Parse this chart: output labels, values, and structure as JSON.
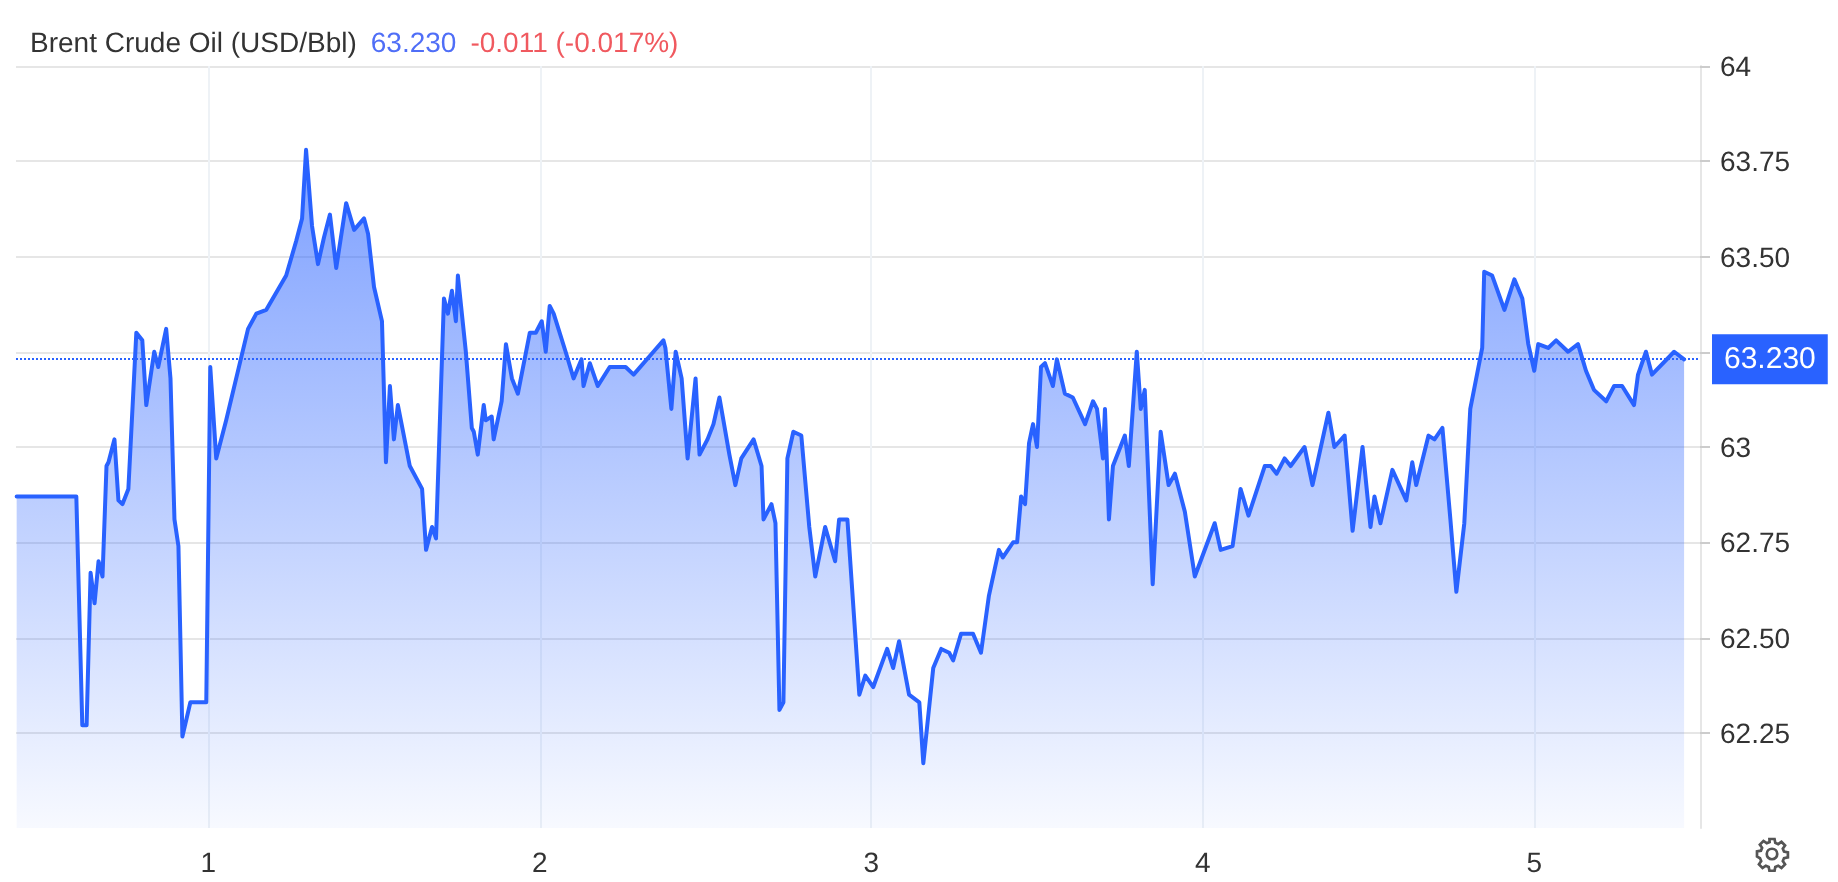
{
  "chart_data": {
    "type": "area",
    "title": "Brent Crude Oil (USD/Bbl)",
    "subtitle": "63.230",
    "annotations": [
      "-0.011 (-0.017%)"
    ],
    "xlim": [
      0.42,
      5.5
    ],
    "xticks": [
      1,
      2,
      3,
      4,
      5
    ],
    "ylim": [
      62,
      64
    ],
    "yticks": [
      {
        "value": 62.25,
        "label": "62.25"
      },
      {
        "value": 62.5,
        "label": "62.50"
      },
      {
        "value": 62.75,
        "label": "62.75"
      },
      63,
      {
        "value": 63.25,
        "label": null
      },
      {
        "value": 63.5,
        "label": "63.50"
      },
      {
        "value": 63.75,
        "label": "63.75"
      },
      64
    ],
    "grid": true,
    "marker": "none",
    "line_style": "solid",
    "ref_lines": [
      {
        "axis": "y",
        "value": 63.23,
        "label": "63.230",
        "color": "#2962ff",
        "line_style": "dotted"
      }
    ],
    "series": [
      {
        "color": "#2962ff",
        "x": [
          0.422,
          0.602,
          0.62,
          0.633,
          0.645,
          0.657,
          0.669,
          0.681,
          0.693,
          0.699,
          0.717,
          0.729,
          0.741,
          0.759,
          0.783,
          0.801,
          0.813,
          0.837,
          0.849,
          0.873,
          0.886,
          0.898,
          0.91,
          0.922,
          0.946,
          0.994,
          1.006,
          1.024,
          1.054,
          1.12,
          1.145,
          1.175,
          1.235,
          1.265,
          1.283,
          1.295,
          1.313,
          1.331,
          1.349,
          1.367,
          1.386,
          1.416,
          1.44,
          1.47,
          1.482,
          1.5,
          1.524,
          1.536,
          1.548,
          1.56,
          1.572,
          1.608,
          1.645,
          1.657,
          1.675,
          1.687,
          1.711,
          1.723,
          1.735,
          1.747,
          1.753,
          1.777,
          1.795,
          1.801,
          1.813,
          1.831,
          1.837,
          1.855,
          1.861,
          1.885,
          1.898,
          1.916,
          1.934,
          1.97,
          1.988,
          2.006,
          2.018,
          2.03,
          2.042,
          2.078,
          2.102,
          2.126,
          2.132,
          2.151,
          2.175,
          2.211,
          2.259,
          2.283,
          2.343,
          2.373,
          2.379,
          2.397,
          2.41,
          2.428,
          2.446,
          2.47,
          2.482,
          2.506,
          2.524,
          2.542,
          2.572,
          2.59,
          2.608,
          2.645,
          2.669,
          2.675,
          2.699,
          2.711,
          2.723,
          2.735,
          2.747,
          2.765,
          2.789,
          2.813,
          2.831,
          2.861,
          2.891,
          2.903,
          2.928,
          2.964,
          2.982,
          3.006,
          3.048,
          3.066,
          3.084,
          3.114,
          3.145,
          3.157,
          3.187,
          3.211,
          3.235,
          3.247,
          3.271,
          3.307,
          3.331,
          3.355,
          3.385,
          3.397,
          3.428,
          3.44,
          3.452,
          3.464,
          3.476,
          3.488,
          3.5,
          3.512,
          3.524,
          3.548,
          3.56,
          3.584,
          3.608,
          3.645,
          3.669,
          3.681,
          3.699,
          3.705,
          3.717,
          3.729,
          3.765,
          3.777,
          3.801,
          3.813,
          3.825,
          3.849,
          3.873,
          3.897,
          3.916,
          3.946,
          3.976,
          4.036,
          4.054,
          4.09,
          4.114,
          4.138,
          4.187,
          4.205,
          4.223,
          4.247,
          4.265,
          4.307,
          4.331,
          4.379,
          4.397,
          4.428,
          4.452,
          4.482,
          4.506,
          4.518,
          4.536,
          4.572,
          4.614,
          4.632,
          4.644,
          4.681,
          4.699,
          4.723,
          4.747,
          4.765,
          4.789,
          4.807,
          4.843,
          4.849,
          4.873,
          4.91,
          4.94,
          4.964,
          4.982,
          5.0,
          5.012,
          5.042,
          5.066,
          5.102,
          5.132,
          5.156,
          5.18,
          5.217,
          5.241,
          5.265,
          5.301,
          5.313,
          5.337,
          5.355,
          5.422,
          5.452
        ],
        "values": [
          62.87,
          62.87,
          62.27,
          62.27,
          62.67,
          62.59,
          62.7,
          62.66,
          62.95,
          62.96,
          63.02,
          62.86,
          62.85,
          62.89,
          63.3,
          63.28,
          63.11,
          63.25,
          63.21,
          63.31,
          63.18,
          62.81,
          62.74,
          62.24,
          62.33,
          62.33,
          63.21,
          62.97,
          63.07,
          63.31,
          63.35,
          63.36,
          63.45,
          63.54,
          63.6,
          63.78,
          63.58,
          63.48,
          63.55,
          63.61,
          63.47,
          63.64,
          63.57,
          63.6,
          63.56,
          63.42,
          63.33,
          62.96,
          63.16,
          63.02,
          63.11,
          62.95,
          62.89,
          62.73,
          62.79,
          62.76,
          63.39,
          63.35,
          63.41,
          63.33,
          63.45,
          63.25,
          63.05,
          63.04,
          62.98,
          63.11,
          63.07,
          63.08,
          63.02,
          63.12,
          63.27,
          63.18,
          63.14,
          63.3,
          63.3,
          63.33,
          63.25,
          63.37,
          63.35,
          63.25,
          63.18,
          63.23,
          63.16,
          63.22,
          63.16,
          63.21,
          63.21,
          63.19,
          63.25,
          63.28,
          63.26,
          63.1,
          63.25,
          63.18,
          62.97,
          63.18,
          62.98,
          63.02,
          63.06,
          63.13,
          62.98,
          62.9,
          62.97,
          63.02,
          62.95,
          62.81,
          62.85,
          62.8,
          62.31,
          62.33,
          62.97,
          63.04,
          63.03,
          62.79,
          62.66,
          62.79,
          62.7,
          62.81,
          62.81,
          62.35,
          62.4,
          62.37,
          62.47,
          62.42,
          62.49,
          62.35,
          62.33,
          62.17,
          62.42,
          62.47,
          62.46,
          62.44,
          62.51,
          62.51,
          62.46,
          62.61,
          62.73,
          62.71,
          62.75,
          62.75,
          62.87,
          62.85,
          63.01,
          63.06,
          63.0,
          63.21,
          63.22,
          63.16,
          63.23,
          63.14,
          63.13,
          63.06,
          63.12,
          63.1,
          62.97,
          63.1,
          62.81,
          62.95,
          63.03,
          62.95,
          63.25,
          63.1,
          63.15,
          62.64,
          63.04,
          62.9,
          62.93,
          62.83,
          62.66,
          62.8,
          62.73,
          62.74,
          62.89,
          62.82,
          62.95,
          62.95,
          62.93,
          62.97,
          62.95,
          63.0,
          62.9,
          63.09,
          63.0,
          63.03,
          62.78,
          63.0,
          62.79,
          62.87,
          62.8,
          62.94,
          62.86,
          62.96,
          62.9,
          63.03,
          63.02,
          63.05,
          62.81,
          62.62,
          62.8,
          63.1,
          63.26,
          63.46,
          63.45,
          63.36,
          63.44,
          63.39,
          63.27,
          63.2,
          63.27,
          63.26,
          63.28,
          63.25,
          63.27,
          63.2,
          63.15,
          63.12,
          63.16,
          63.16,
          63.11,
          63.19,
          63.25,
          63.19,
          63.25,
          63.23
        ]
      }
    ]
  }
}
